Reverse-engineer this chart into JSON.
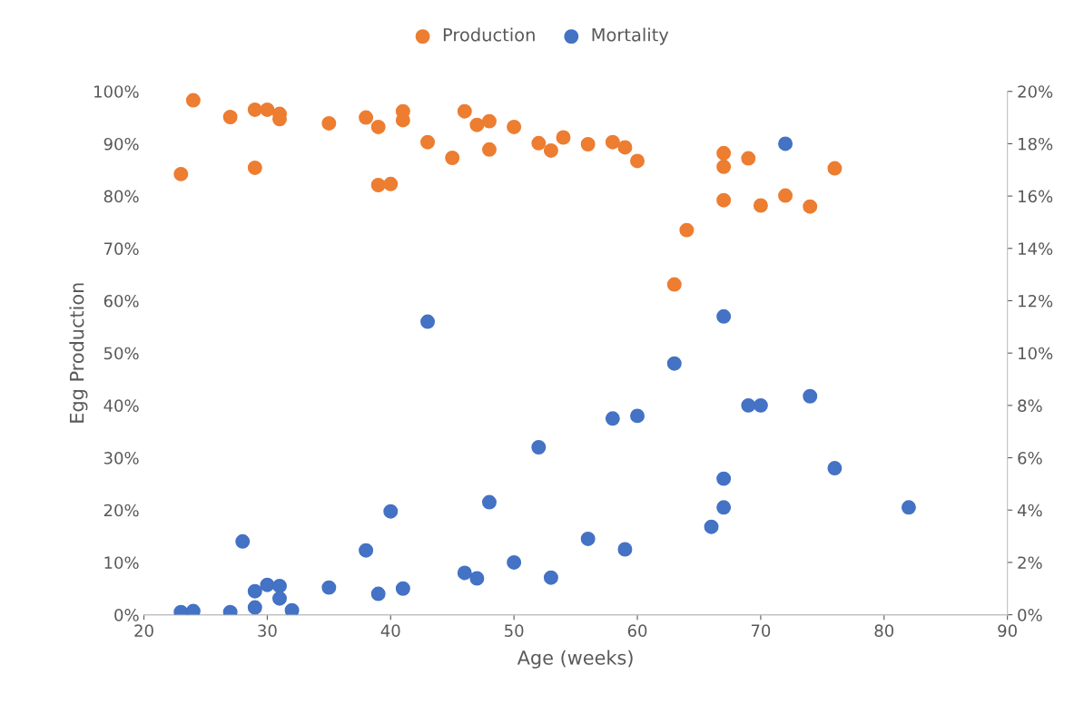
{
  "chart_data": {
    "type": "scatter",
    "xlabel": "Age (weeks)",
    "ylabel": "Egg Production",
    "legend": "top",
    "grid": false,
    "marker": "circle",
    "xlim": [
      20,
      90
    ],
    "xticks": [
      20,
      30,
      40,
      50,
      60,
      70,
      80,
      90
    ],
    "ylim": [
      0,
      1
    ],
    "yticks": [
      {
        "value": 0,
        "label": "0%"
      },
      {
        "value": 0.1,
        "label": "10%"
      },
      {
        "value": 0.2,
        "label": "20%"
      },
      {
        "value": 0.3,
        "label": "30%"
      },
      {
        "value": 0.4,
        "label": "40%"
      },
      {
        "value": 0.5,
        "label": "50%"
      },
      {
        "value": 0.6,
        "label": "60%"
      },
      {
        "value": 0.7,
        "label": "70%"
      },
      {
        "value": 0.8,
        "label": "80%"
      },
      {
        "value": 0.9,
        "label": "90%"
      },
      {
        "value": 1,
        "label": "100%"
      }
    ],
    "y2lim": [
      0,
      0.2
    ],
    "y2ticks": [
      {
        "value": 0,
        "label": "0%"
      },
      {
        "value": 0.02,
        "label": "2%"
      },
      {
        "value": 0.04,
        "label": "4%"
      },
      {
        "value": 0.06,
        "label": "6%"
      },
      {
        "value": 0.08,
        "label": "8%"
      },
      {
        "value": 0.1,
        "label": "10%"
      },
      {
        "value": 0.12,
        "label": "12%"
      },
      {
        "value": 0.14,
        "label": "14%"
      },
      {
        "value": 0.16,
        "label": "16%"
      },
      {
        "value": 0.18,
        "label": "18%"
      },
      {
        "value": 0.2,
        "label": "20%"
      }
    ],
    "series": [
      {
        "name": "Production",
        "color": "#ed7d31",
        "x": [
          23,
          24,
          27,
          29,
          29,
          30,
          31,
          31,
          35,
          38,
          39,
          39,
          40,
          41,
          41,
          43,
          45,
          46,
          47,
          48,
          48,
          50,
          52,
          53,
          54,
          56,
          58,
          59,
          60,
          63,
          64,
          67,
          67,
          67,
          69,
          70,
          72,
          74,
          76
        ],
        "values": [
          0.842,
          0.983,
          0.951,
          0.965,
          0.854,
          0.965,
          0.957,
          0.947,
          0.939,
          0.95,
          0.932,
          0.821,
          0.823,
          0.962,
          0.945,
          0.903,
          0.873,
          0.962,
          0.936,
          0.943,
          0.889,
          0.932,
          0.901,
          0.887,
          0.912,
          0.899,
          0.903,
          0.893,
          0.867,
          0.631,
          0.735,
          0.882,
          0.856,
          0.792,
          0.872,
          0.782,
          0.801,
          0.78,
          0.853
        ]
      },
      {
        "name": "Mortality",
        "color": "#4472c4",
        "axis": "y2",
        "x": [
          23,
          24,
          27,
          28,
          29,
          29,
          30,
          31,
          31,
          32,
          35,
          38,
          39,
          40,
          41,
          43,
          46,
          47,
          48,
          50,
          52,
          53,
          56,
          58,
          59,
          60,
          63,
          66,
          67,
          67,
          67,
          69,
          70,
          72,
          74,
          76,
          82
        ],
        "values": [
          0.001,
          0.0014,
          0.001,
          0.028,
          0.009,
          0.0028,
          0.0114,
          0.011,
          0.0062,
          0.0017,
          0.0104,
          0.0246,
          0.008,
          0.0395,
          0.01,
          0.112,
          0.016,
          0.0139,
          0.043,
          0.02,
          0.064,
          0.0142,
          0.029,
          0.075,
          0.025,
          0.076,
          0.096,
          0.0336,
          0.052,
          0.041,
          0.114,
          0.08,
          0.08,
          0.18,
          0.0835,
          0.056,
          0.041
        ]
      }
    ]
  }
}
